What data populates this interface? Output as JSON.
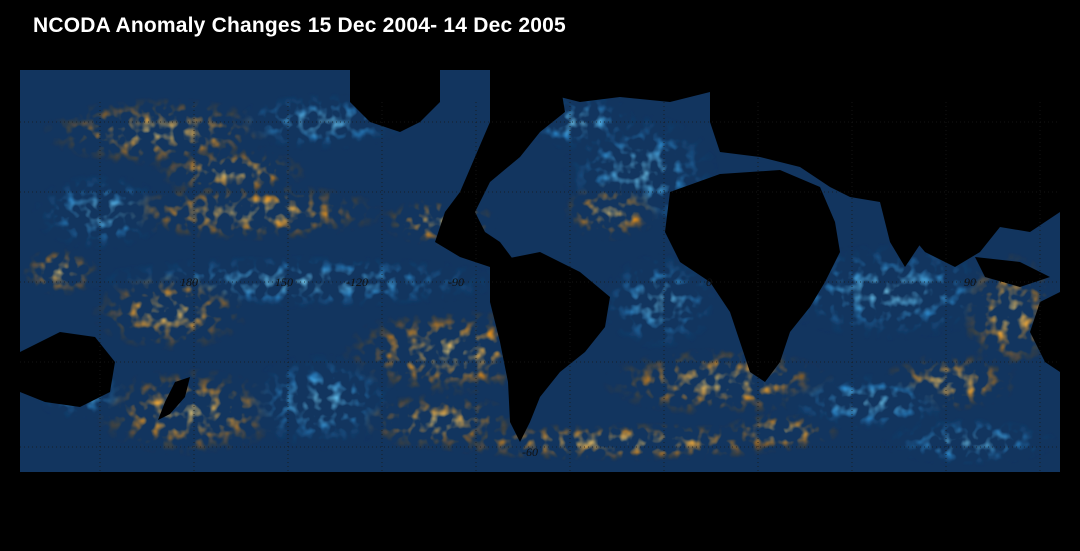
{
  "title": "NCODA Anomaly Changes 15 Dec 2004- 14 Dec 2005",
  "map": {
    "longitude_labels": [
      "180",
      "150",
      "-120",
      "-90",
      "0",
      "90"
    ],
    "latitude_labels": [
      "-60"
    ],
    "colors": {
      "background": "#000000",
      "land": "#000000",
      "positive_anomaly": "#d88a1e",
      "strong_positive_anomaly": "#f4c860",
      "negative_anomaly": "#1f6fb5",
      "strong_negative_anomaly": "#5cc3f0",
      "contour": "#050505"
    }
  }
}
